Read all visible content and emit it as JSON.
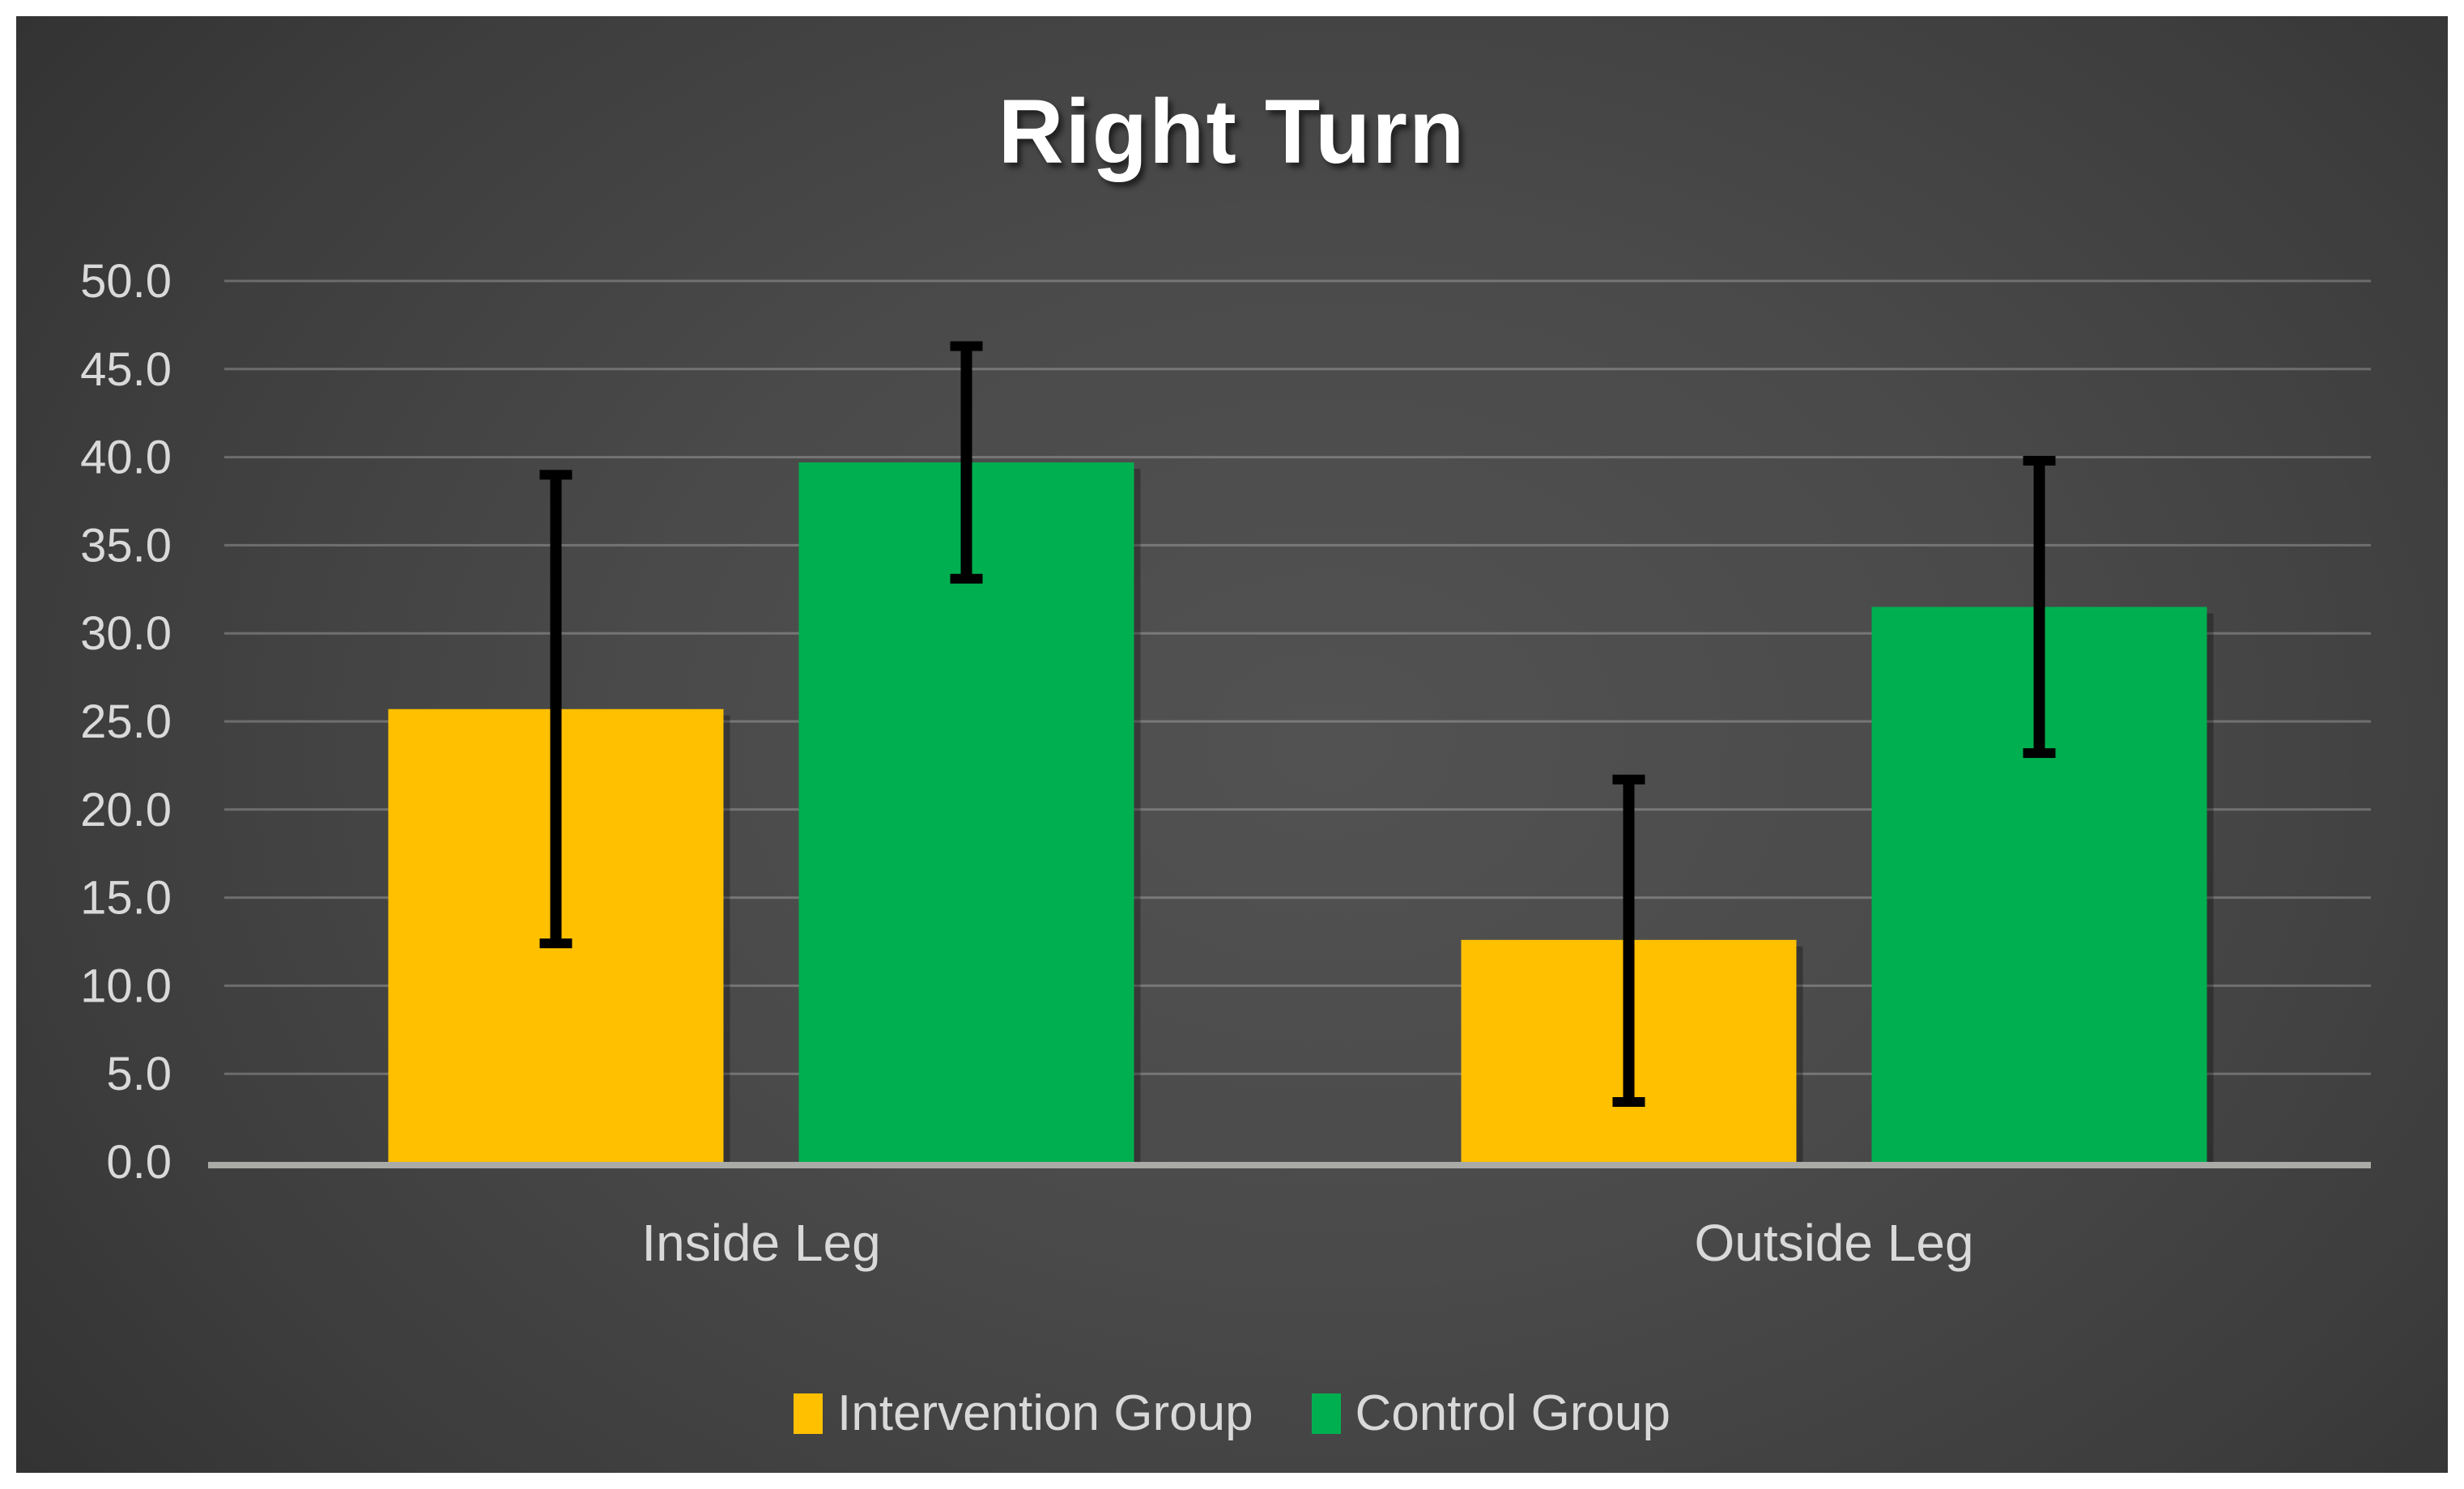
{
  "chart_data": {
    "type": "bar",
    "title": "Right Turn",
    "categories": [
      "Inside Leg",
      "Outside Leg"
    ],
    "series": [
      {
        "name": "Intervention Group",
        "color": "#FFC000",
        "values": [
          25.7,
          12.6
        ],
        "error_low": [
          12.4,
          3.4
        ],
        "error_high": [
          39.0,
          21.7
        ]
      },
      {
        "name": "Control Group",
        "color": "#00B050",
        "values": [
          39.7,
          31.5
        ],
        "error_low": [
          33.1,
          23.2
        ],
        "error_high": [
          46.3,
          39.8
        ]
      }
    ],
    "y_axis": {
      "min": 0,
      "max": 50,
      "step": 5,
      "tick_labels": [
        "0.0",
        "5.0",
        "10.0",
        "15.0",
        "20.0",
        "25.0",
        "30.0",
        "35.0",
        "40.0",
        "45.0",
        "50.0"
      ]
    },
    "grid": true,
    "legend_position": "bottom",
    "error_bars": true
  },
  "colors": {
    "frame": "#ffffff",
    "background_center": "#515151",
    "background_edge": "#242424",
    "gridline": "rgba(255,255,255,0.24)",
    "axis_line": "#aaaaa7",
    "tick_text": "#d9d9d9",
    "title_text": "#ffffff",
    "error_bar": "#000000"
  }
}
